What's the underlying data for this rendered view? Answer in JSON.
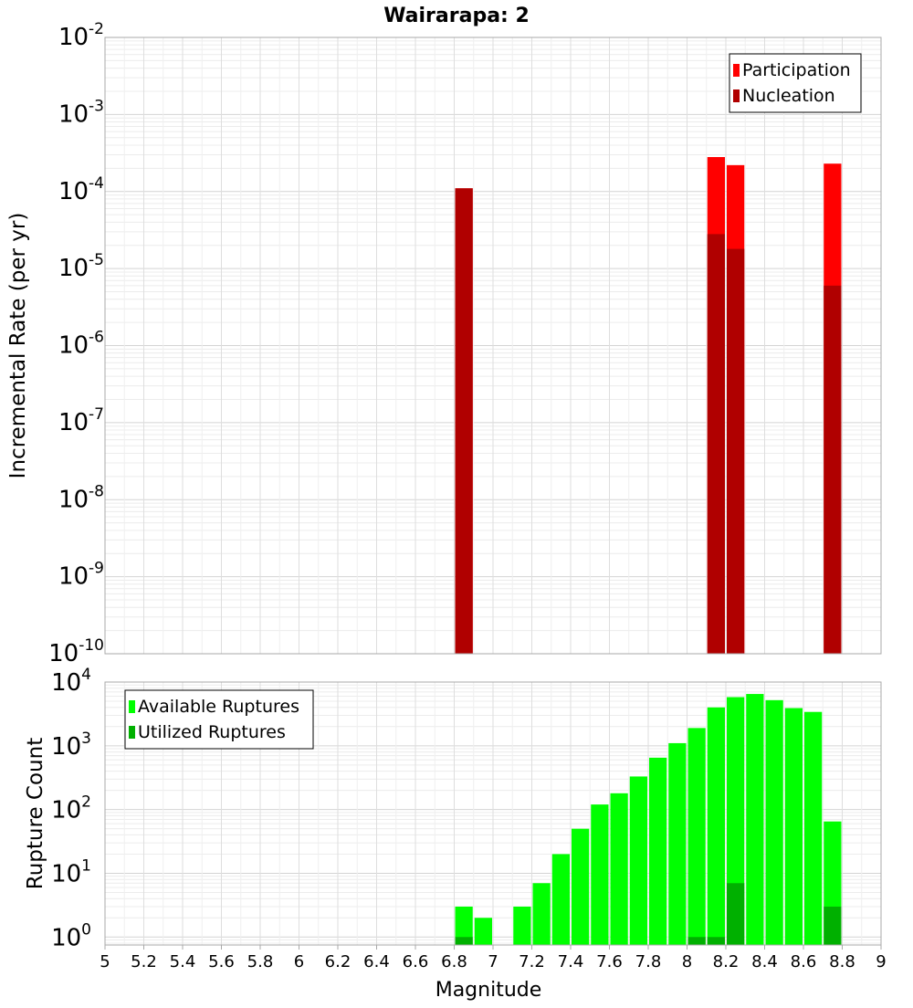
{
  "chart_data": [
    {
      "type": "bar",
      "title": "Wairarapa: 2",
      "xlabel": "",
      "ylabel": "Incremental Rate (per yr)",
      "yscale": "log",
      "xlim": [
        5,
        9
      ],
      "ylim": [
        1e-10,
        0.01
      ],
      "y_tick_labels": [
        {
          "base": "10",
          "exp": "-10"
        },
        {
          "base": "10",
          "exp": "-9"
        },
        {
          "base": "10",
          "exp": "-8"
        },
        {
          "base": "10",
          "exp": "-7"
        },
        {
          "base": "10",
          "exp": "-6"
        },
        {
          "base": "10",
          "exp": "-5"
        },
        {
          "base": "10",
          "exp": "-4"
        },
        {
          "base": "10",
          "exp": "-3"
        },
        {
          "base": "10",
          "exp": "-2"
        }
      ],
      "grid": true,
      "legend_position": "top-right",
      "series": [
        {
          "name": "Participation",
          "color": "#ff0000",
          "x": [
            6.85,
            8.15,
            8.25,
            8.75
          ],
          "values": [
            0.00011,
            0.00028,
            0.00022,
            0.00023
          ]
        },
        {
          "name": "Nucleation",
          "color": "#b00000",
          "x": [
            6.85,
            8.15,
            8.25,
            8.75
          ],
          "values": [
            0.00011,
            2.8e-05,
            1.8e-05,
            6e-06
          ]
        }
      ]
    },
    {
      "type": "bar",
      "title": "",
      "xlabel": "Magnitude",
      "ylabel": "Rupture Count",
      "yscale": "log",
      "xlim": [
        5,
        9
      ],
      "ylim": [
        0.75,
        10000
      ],
      "x_tick_labels": [
        "5",
        "5.2",
        "5.4",
        "5.6",
        "5.8",
        "6",
        "6.2",
        "6.4",
        "6.6",
        "6.8",
        "7",
        "7.2",
        "7.4",
        "7.6",
        "7.8",
        "8",
        "8.2",
        "8.4",
        "8.6",
        "8.8",
        "9"
      ],
      "y_tick_labels": [
        {
          "base": "10",
          "exp": "0"
        },
        {
          "base": "10",
          "exp": "1"
        },
        {
          "base": "10",
          "exp": "2"
        },
        {
          "base": "10",
          "exp": "3"
        },
        {
          "base": "10",
          "exp": "4"
        }
      ],
      "grid": true,
      "legend_position": "top-left",
      "series": [
        {
          "name": "Available Ruptures",
          "color": "#00ff00",
          "x": [
            6.85,
            6.95,
            7.15,
            7.25,
            7.35,
            7.45,
            7.55,
            7.65,
            7.75,
            7.85,
            7.95,
            8.05,
            8.15,
            8.25,
            8.35,
            8.45,
            8.55,
            8.65,
            8.75
          ],
          "values": [
            3,
            2,
            3,
            7,
            20,
            50,
            120,
            180,
            330,
            650,
            1100,
            1900,
            4000,
            5800,
            6500,
            5200,
            3900,
            3400,
            65
          ]
        },
        {
          "name": "Utilized Ruptures",
          "color": "#00b000",
          "x": [
            6.85,
            8.05,
            8.15,
            8.25,
            8.75
          ],
          "values": [
            1,
            1,
            1,
            7,
            3
          ]
        }
      ]
    }
  ]
}
